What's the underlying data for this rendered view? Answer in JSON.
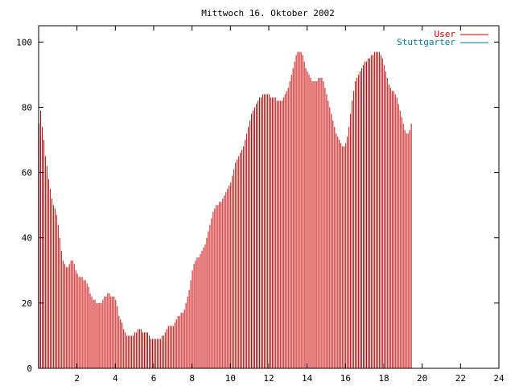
{
  "chart_data": {
    "type": "bar",
    "title": "Mittwoch 16. Oktober 2002",
    "xlabel": "",
    "ylabel": "",
    "xlim": [
      0,
      24
    ],
    "ylim": [
      0,
      105
    ],
    "x_ticks": [
      2,
      4,
      6,
      8,
      10,
      12,
      14,
      16,
      18,
      20,
      22,
      24
    ],
    "x_tick_labels": [
      "2",
      "4",
      "6",
      "8",
      "10",
      "12",
      "14",
      "16",
      "18",
      "20",
      "22",
      "24"
    ],
    "y_ticks": [
      0,
      20,
      40,
      60,
      80,
      100
    ],
    "y_tick_labels": [
      "0",
      "20",
      "40",
      "60",
      "80",
      "100"
    ],
    "grid": false,
    "legend_position": "top-right",
    "bar_interval_hours": 0.0833,
    "series": [
      {
        "name": "User",
        "color": "#cc0000",
        "values": [
          75,
          79,
          74,
          70,
          65,
          62,
          58,
          55,
          52,
          50,
          49,
          47,
          44,
          40,
          36,
          33,
          32,
          31,
          31,
          32,
          33,
          33,
          32,
          30,
          29,
          28,
          28,
          28,
          27,
          27,
          26,
          25,
          23,
          22,
          21,
          21,
          20,
          20,
          20,
          20,
          21,
          22,
          22,
          23,
          23,
          22,
          22,
          22,
          21,
          19,
          16,
          15,
          14,
          12,
          11,
          10,
          10,
          10,
          10,
          10,
          11,
          11,
          12,
          12,
          12,
          11,
          11,
          11,
          11,
          10,
          9,
          9,
          9,
          9,
          9,
          9,
          9,
          10,
          10,
          11,
          12,
          13,
          13,
          13,
          13,
          14,
          15,
          16,
          16,
          17,
          17,
          18,
          20,
          22,
          24,
          27,
          30,
          32,
          33,
          34,
          34,
          35,
          36,
          37,
          38,
          40,
          42,
          44,
          46,
          48,
          49,
          50,
          50,
          51,
          51,
          52,
          53,
          54,
          55,
          56,
          57,
          59,
          61,
          63,
          64,
          65,
          66,
          67,
          68,
          70,
          72,
          74,
          76,
          78,
          79,
          80,
          81,
          82,
          83,
          83,
          84,
          84,
          84,
          84,
          84,
          83,
          83,
          83,
          83,
          82,
          82,
          82,
          82,
          83,
          84,
          85,
          86,
          88,
          90,
          92,
          94,
          96,
          97,
          97,
          97,
          96,
          94,
          92,
          91,
          90,
          89,
          88,
          88,
          88,
          88,
          89,
          89,
          89,
          88,
          86,
          84,
          82,
          80,
          78,
          76,
          74,
          72,
          71,
          70,
          69,
          68,
          68,
          69,
          71,
          74,
          78,
          82,
          85,
          88,
          89,
          90,
          91,
          92,
          93,
          94,
          94,
          95,
          95,
          96,
          96,
          97,
          97,
          97,
          97,
          96,
          95,
          93,
          91,
          89,
          87,
          86,
          85,
          85,
          84,
          83,
          81,
          79,
          77,
          75,
          73,
          72,
          72,
          73,
          75
        ]
      },
      {
        "name": "Stuttgarter",
        "color": "#0077aa",
        "values": [
          0,
          0,
          0,
          0,
          0,
          0,
          0,
          0,
          0,
          0,
          0,
          0,
          0,
          0,
          0,
          0,
          0,
          0,
          0,
          0,
          0,
          0,
          0,
          0,
          0,
          0,
          0,
          0,
          0,
          0,
          0,
          0,
          0,
          0,
          0,
          0,
          0,
          0,
          0,
          0,
          0,
          0,
          0,
          0,
          0,
          0,
          0,
          0,
          0,
          0,
          0,
          0,
          0,
          0,
          0,
          0,
          0,
          0,
          0,
          0,
          0,
          0,
          0,
          0,
          0,
          0,
          0,
          0,
          0,
          0,
          0,
          0,
          0,
          0,
          0,
          0,
          0,
          0,
          0,
          0,
          0,
          0,
          0,
          0,
          0,
          0,
          0,
          0,
          0,
          0,
          0,
          0,
          0,
          0,
          0,
          0,
          0,
          0,
          0,
          0,
          0,
          0,
          0,
          0,
          0,
          0,
          0,
          0,
          0,
          0,
          0,
          0,
          0,
          0,
          0,
          0,
          0,
          0,
          0,
          0,
          0,
          0,
          0,
          0,
          0,
          0,
          0,
          0,
          0,
          0,
          0,
          0,
          0,
          0,
          0,
          0,
          0,
          0,
          0,
          0,
          0,
          0,
          0,
          0,
          0,
          0,
          0,
          0,
          0,
          0,
          0,
          0,
          0,
          0,
          0,
          0,
          0,
          0,
          0,
          0,
          0,
          0,
          0,
          0,
          0,
          0,
          0,
          0,
          0,
          0,
          0,
          0,
          0,
          0,
          0,
          0,
          0,
          0,
          0,
          0,
          0,
          0,
          0,
          0,
          0,
          0,
          0,
          0,
          0,
          0,
          0,
          0,
          0,
          0,
          0,
          0,
          0,
          0,
          0,
          0,
          0,
          0,
          0,
          0,
          0,
          0,
          0,
          0,
          0,
          0,
          0,
          0,
          0,
          0,
          0,
          0,
          0,
          0,
          0,
          0,
          0,
          0,
          0,
          0,
          0,
          0,
          0,
          0,
          0,
          0,
          0,
          0,
          0,
          0,
          0,
          0,
          0,
          0,
          0
        ]
      }
    ]
  }
}
